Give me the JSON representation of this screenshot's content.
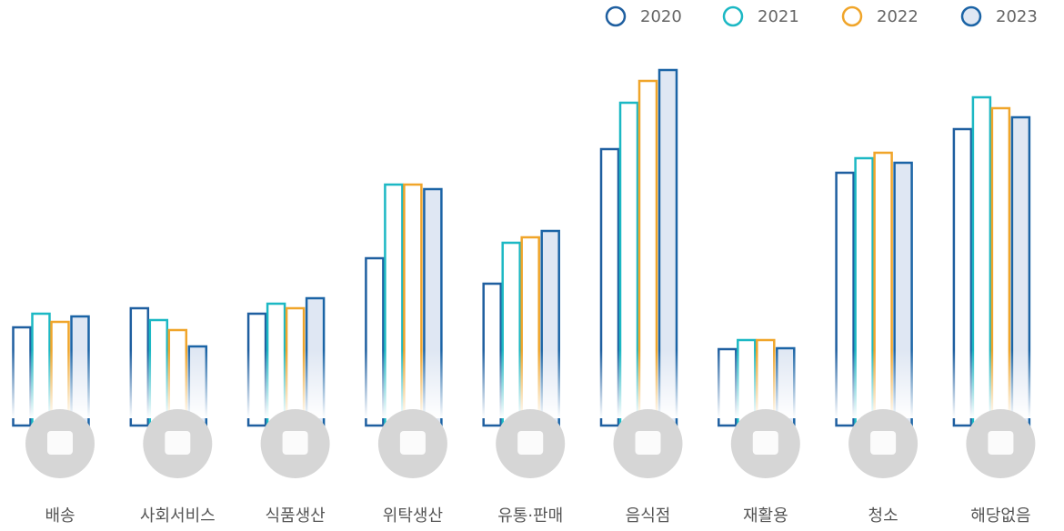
{
  "chart_data": {
    "type": "bar",
    "categories": [
      "배송",
      "사회서비스",
      "식품생산",
      "위탁생산",
      "유통·판매",
      "음식점",
      "재활용",
      "청소",
      "해당없음"
    ],
    "series": [
      {
        "name": "2020",
        "color": "#1f5fa0",
        "fill": "#ffffff",
        "values": [
          98,
          119,
          113,
          174,
          146,
          294,
          74,
          268,
          316
        ]
      },
      {
        "name": "2021",
        "color": "#1cb8c4",
        "fill": "#ffffff",
        "values": [
          113,
          106,
          124,
          255,
          191,
          345,
          84,
          284,
          351
        ]
      },
      {
        "name": "2022",
        "color": "#f0a52a",
        "fill": "#ffffff",
        "values": [
          104,
          95,
          119,
          255,
          197,
          369,
          84,
          290,
          339
        ]
      },
      {
        "name": "2023",
        "color": "#1b64a6",
        "fill": "#dfe7f3",
        "values": [
          110,
          77,
          130,
          250,
          204,
          381,
          75,
          279,
          329
        ]
      }
    ]
  }
}
